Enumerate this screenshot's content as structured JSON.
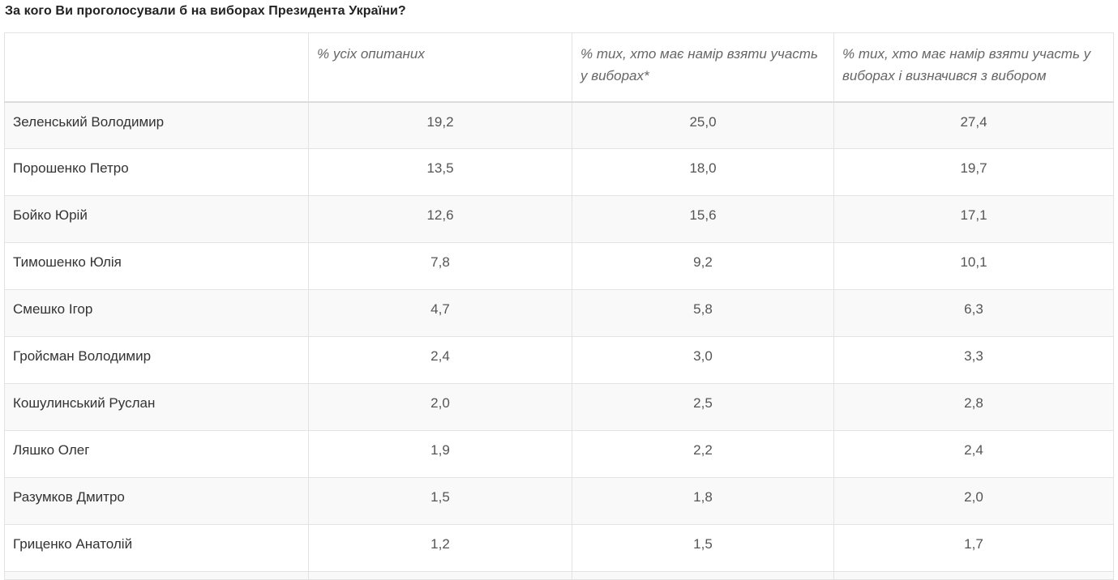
{
  "title": "За кого Ви проголосували б на виборах Президента України?",
  "columns": [
    "",
    "% усіх опитаних",
    "% тих, хто має намір взяти участь у виборах*",
    "% тих, хто має намір взяти участь у виборах і визначився з вибором"
  ],
  "rows": [
    {
      "name": "Зеленський Володимир",
      "all": "19,2",
      "voters": "25,0",
      "decided": "27,4"
    },
    {
      "name": "Порошенко Петро",
      "all": "13,5",
      "voters": "18,0",
      "decided": "19,7"
    },
    {
      "name": "Бойко Юрій",
      "all": "12,6",
      "voters": "15,6",
      "decided": "17,1"
    },
    {
      "name": "Тимошенко Юлія",
      "all": "7,8",
      "voters": "9,2",
      "decided": "10,1"
    },
    {
      "name": "Смешко Ігор",
      "all": "4,7",
      "voters": "5,8",
      "decided": "6,3"
    },
    {
      "name": "Гройсман Володимир",
      "all": "2,4",
      "voters": "3,0",
      "decided": "3,3"
    },
    {
      "name": "Кошулинський Руслан",
      "all": "2,0",
      "voters": "2,5",
      "decided": "2,8"
    },
    {
      "name": "Ляшко Олег",
      "all": "1,9",
      "voters": "2,2",
      "decided": "2,4"
    },
    {
      "name": "Разумков Дмитро",
      "all": "1,5",
      "voters": "1,8",
      "decided": "2,0"
    },
    {
      "name": "Гриценко Анатолій",
      "all": "1,2",
      "voters": "1,5",
      "decided": "1,7"
    }
  ]
}
